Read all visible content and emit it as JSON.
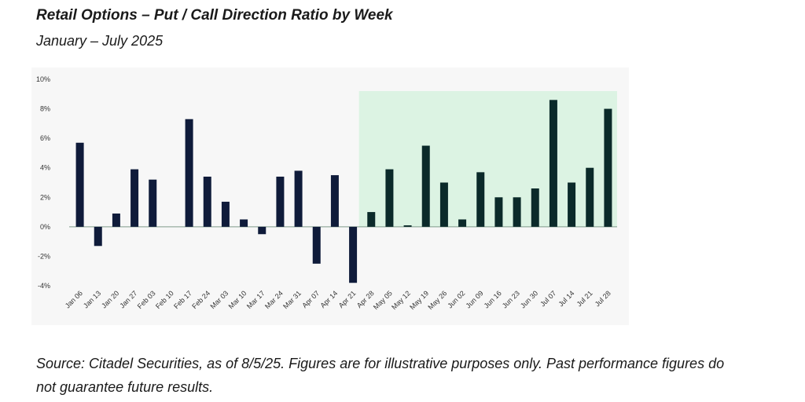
{
  "title": "Retail Options – Put / Call Direction Ratio by Week",
  "subtitle": "January – July 2025",
  "source": "Source: Citadel Securities, as of 8/5/25. Figures are for illustrative purposes only. Past performance figures do not guarantee future results.",
  "colors": {
    "bar": "#0f1b3a",
    "bar_shaded": "#0b2a2a",
    "shade": "#dcf3e3",
    "zero_line": "#7f9a8a",
    "plot_bg": "#f7f7f7"
  },
  "chart_data": {
    "type": "bar",
    "title": "",
    "xlabel": "",
    "ylabel": "",
    "ylim": [
      -4,
      10
    ],
    "yticks": [
      10,
      8,
      6,
      4,
      2,
      0,
      -2,
      -4
    ],
    "ytick_labels": [
      "10%",
      "8%",
      "6%",
      "4%",
      "2%",
      "0%",
      "-2%",
      "-4%"
    ],
    "grid": false,
    "categories": [
      "Jan 06",
      "Jan 13",
      "Jan 20",
      "Jan 27",
      "Feb 03",
      "Feb 10",
      "Feb 17",
      "Feb 24",
      "Mar 03",
      "Mar 10",
      "Mar 17",
      "Mar 24",
      "Mar 31",
      "Apr 07",
      "Apr 14",
      "Apr 21",
      "Apr 28",
      "May 05",
      "May 12",
      "May 19",
      "May 26",
      "Jun 02",
      "Jun 09",
      "Jun 16",
      "Jun 23",
      "Jun 30",
      "Jul 07",
      "Jul 14",
      "Jul 21",
      "Jul 28"
    ],
    "values": [
      5.7,
      -1.3,
      0.9,
      3.9,
      3.2,
      0.0,
      7.3,
      3.4,
      1.7,
      0.5,
      -0.5,
      3.4,
      3.8,
      -2.5,
      3.5,
      -3.8,
      1.0,
      3.9,
      0.1,
      5.5,
      3.0,
      0.5,
      3.7,
      2.0,
      2.0,
      2.6,
      8.6,
      3.0,
      4.0,
      8.0
    ],
    "highlight_range": [
      "Apr 28",
      "Jul 28"
    ]
  }
}
